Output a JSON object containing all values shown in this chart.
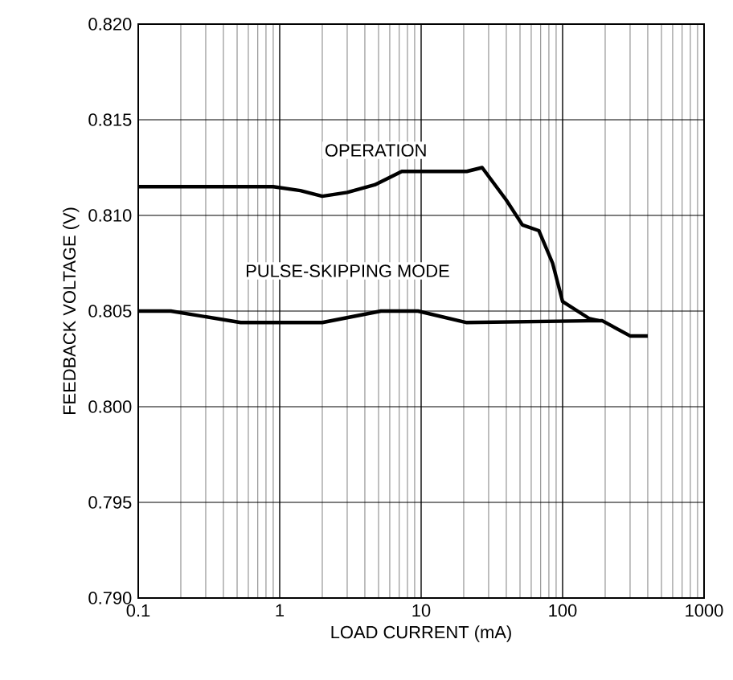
{
  "chart_data": {
    "type": "line",
    "xlabel": "LOAD CURRENT (mA)",
    "ylabel": "FEEDBACK VOLTAGE (V)",
    "log": "x",
    "grid": true,
    "marker": "none",
    "line_style": "solid",
    "xlim": [
      0.1,
      1000
    ],
    "ylim": [
      0.79,
      0.82
    ],
    "xticks": [
      0.1,
      1,
      10,
      100,
      1000
    ],
    "yticks": [
      {
        "value": 0.79,
        "label": "0.790"
      },
      {
        "value": 0.795,
        "label": "0.795"
      },
      {
        "value": 0.8,
        "label": "0.800"
      },
      {
        "value": 0.805,
        "label": "0.805"
      },
      {
        "value": 0.81,
        "label": "0.810"
      },
      {
        "value": 0.815,
        "label": "0.815"
      },
      {
        "value": 0.82,
        "label": "0.820"
      }
    ],
    "series": [
      {
        "color": "#000000",
        "x": [
          0.1,
          0.9,
          1.4,
          2.0,
          3.0,
          4.7,
          7.3,
          21,
          27,
          40,
          52,
          68,
          85,
          100,
          155,
          180
        ],
        "values": [
          0.8115,
          0.8115,
          0.8113,
          0.811,
          0.8112,
          0.8116,
          0.8123,
          0.8123,
          0.8125,
          0.8108,
          0.8095,
          0.8092,
          0.8075,
          0.8055,
          0.8046,
          0.8045
        ]
      },
      {
        "color": "#000000",
        "x": [
          0.1,
          0.17,
          0.53,
          2.0,
          5.2,
          9.5,
          21,
          190,
          300,
          400
        ],
        "values": [
          0.805,
          0.805,
          0.8044,
          0.8044,
          0.805,
          0.805,
          0.8044,
          0.8045,
          0.8037,
          0.8037
        ]
      }
    ],
    "annotations": [
      "OPERATION",
      "PULSE-SKIPPING MODE"
    ]
  }
}
